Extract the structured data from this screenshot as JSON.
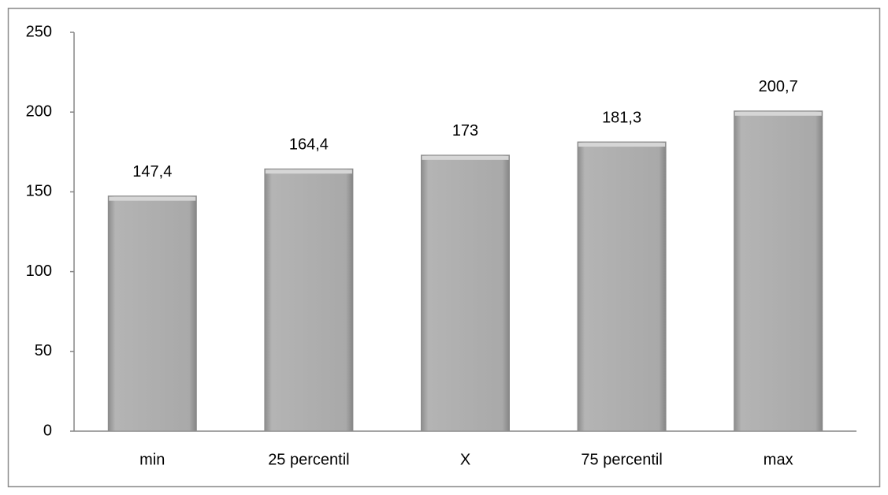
{
  "chart_data": {
    "type": "bar",
    "categories": [
      "min",
      "25 percentil",
      "X",
      "75 percentil",
      "max"
    ],
    "values": [
      147.4,
      164.4,
      173,
      181.3,
      200.7
    ],
    "value_labels": [
      "147,4",
      "164,4",
      "173",
      "181,3",
      "200,7"
    ],
    "color": "#a6a6a6",
    "ylim": [
      0,
      250
    ],
    "yticks": [
      0,
      50,
      100,
      150,
      200,
      250
    ],
    "grid": false
  }
}
